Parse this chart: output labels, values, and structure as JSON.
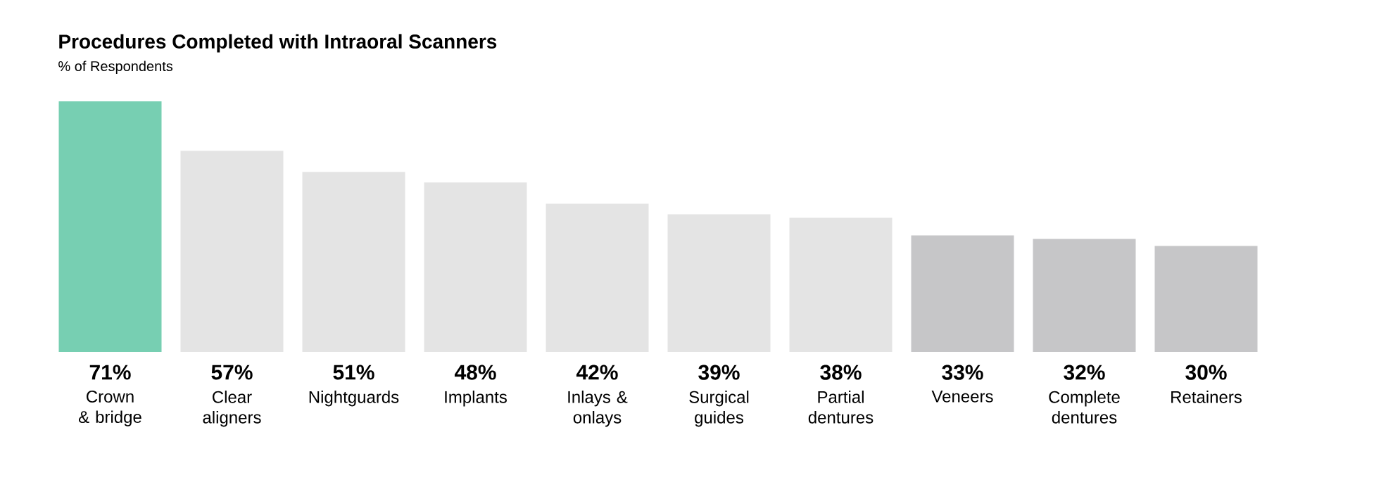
{
  "chart_data": {
    "type": "bar",
    "title": "Procedures Completed with Intraoral Scanners",
    "subtitle": "% of Respondents",
    "categories": [
      "Crown & bridge",
      "Clear aligners",
      "Nightguards",
      "Implants",
      "Inlays & onlays",
      "Surgical guides",
      "Partial dentures",
      "Veneers",
      "Complete dentures",
      "Retainers"
    ],
    "values": [
      71,
      57,
      51,
      48,
      42,
      39,
      38,
      33,
      32,
      30
    ],
    "colors": [
      "#77cfb2",
      "#e4e4e4",
      "#e4e4e4",
      "#e4e4e4",
      "#e4e4e4",
      "#e4e4e4",
      "#e4e4e4",
      "#c6c6c8",
      "#c6c6c8",
      "#c6c6c8"
    ],
    "value_labels": [
      "71%",
      "57%",
      "51%",
      "48%",
      "42%",
      "39%",
      "38%",
      "33%",
      "32%",
      "30%"
    ]
  }
}
